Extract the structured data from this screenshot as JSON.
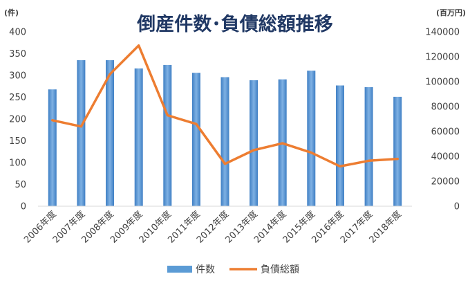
{
  "chart_data": {
    "type": "bar+line",
    "title": "倒産件数･負債総額推移",
    "left_axis": {
      "unit": "(件)",
      "ylim": [
        0,
        400
      ],
      "ticks": [
        0,
        50,
        100,
        150,
        200,
        250,
        300,
        350,
        400
      ]
    },
    "right_axis": {
      "unit": "(百万円)",
      "ylim": [
        0,
        140000
      ],
      "ticks": [
        0,
        20000,
        40000,
        60000,
        80000,
        100000,
        120000,
        140000
      ]
    },
    "categories": [
      "2006年度",
      "2007年度",
      "2008年度",
      "2009年度",
      "2010年度",
      "2011年度",
      "2012年度",
      "2013年度",
      "2014年度",
      "2015年度",
      "2016年度",
      "2017年度",
      "2018年度"
    ],
    "series": [
      {
        "name": "件数",
        "type": "bar",
        "axis": "left",
        "color": "#5b9bd5",
        "values": [
          268,
          335,
          335,
          316,
          324,
          306,
          296,
          289,
          291,
          311,
          277,
          273,
          251
        ]
      },
      {
        "name": "負債総額",
        "type": "line",
        "axis": "right",
        "color": "#ed7d31",
        "values": [
          69000,
          64000,
          106000,
          129000,
          73000,
          66000,
          34000,
          45000,
          50500,
          43000,
          32000,
          36500,
          38000
        ]
      }
    ],
    "grid": false,
    "legend_position": "bottom"
  }
}
